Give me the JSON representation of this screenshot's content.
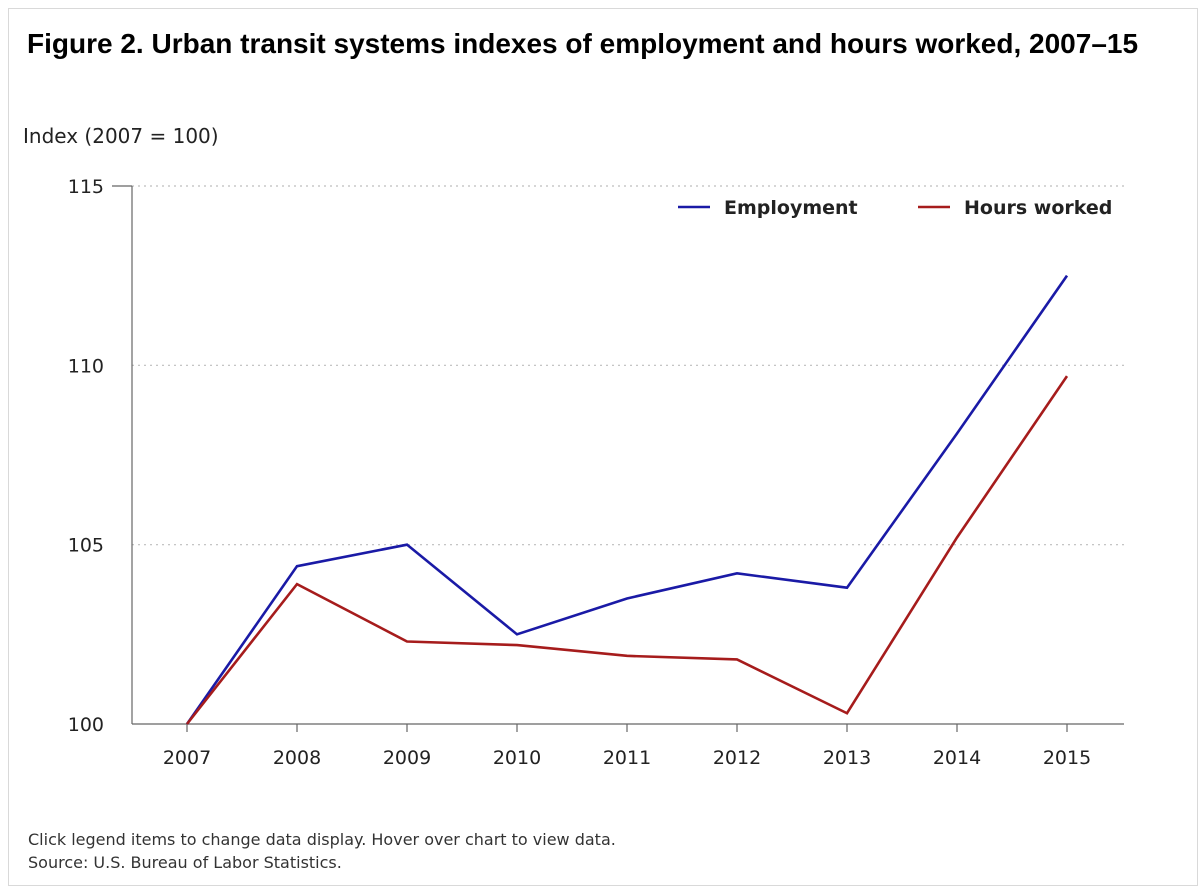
{
  "figure": {
    "title": "Figure 2. Urban transit systems indexes of employment and hours worked, 2007–15",
    "y_unit_label": "Index (2007 = 100)",
    "note": "Click legend items to change data display. Hover over chart to view data.",
    "source": "Source: U.S. Bureau of Labor Statistics."
  },
  "chart_data": {
    "type": "line",
    "title": "Figure 2. Urban transit systems indexes of employment and hours worked, 2007–15",
    "xlabel": "",
    "ylabel": "Index (2007 = 100)",
    "x": [
      "2007",
      "2008",
      "2009",
      "2010",
      "2011",
      "2012",
      "2013",
      "2014",
      "2015"
    ],
    "ylim": [
      100,
      115
    ],
    "yticks": [
      100,
      105,
      110,
      115
    ],
    "grid": "horizontal dotted",
    "legend_position": "top-right",
    "series": [
      {
        "name": "Employment",
        "color": "#1a1aa6",
        "values": [
          100.0,
          104.4,
          105.0,
          102.5,
          103.5,
          104.2,
          103.8,
          108.1,
          112.5
        ]
      },
      {
        "name": "Hours worked",
        "color": "#a61c1c",
        "values": [
          100.0,
          103.9,
          102.3,
          102.2,
          101.9,
          101.8,
          100.3,
          105.2,
          109.7
        ]
      }
    ]
  }
}
